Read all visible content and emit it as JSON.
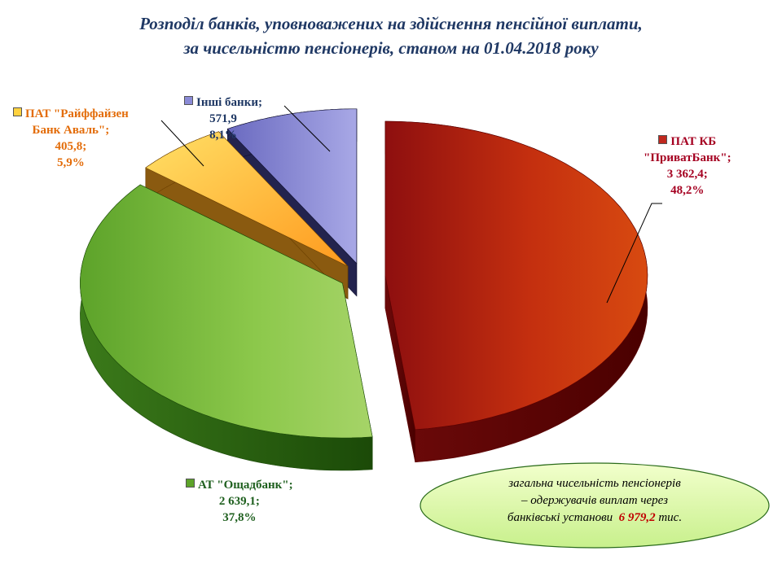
{
  "title_line1": "Розподіл банків, уповноважених на здійснення пенсійної виплати,",
  "title_line2": "за чисельністю пенсіонерів, станом на 01.04.2018 року",
  "chart_data": {
    "type": "pie",
    "title": "Розподіл банків, уповноважених на здійснення пенсійної виплати, за чисельністю пенсіонерів, станом на 01.04.2018 року",
    "slices": [
      {
        "name_line1": "ПАТ КБ",
        "name_line2": "\"ПриватБанк\";",
        "value": 3362.4,
        "value_label": "3 362,4;",
        "percent": 48.2,
        "percent_label": "48,2%",
        "color": "#c0281e"
      },
      {
        "name_line1": "АТ \"Ощадбанк\";",
        "name_line2": "",
        "value": 2639.1,
        "value_label": "2 639,1;",
        "percent": 37.8,
        "percent_label": "37,8%",
        "color": "#7cc03a"
      },
      {
        "name_line1": "ПАТ \"Райффайзен",
        "name_line2": "Банк Аваль\";",
        "value": 405.8,
        "value_label": "405,8;",
        "percent": 5.9,
        "percent_label": "5,9%",
        "color": "#ffd23f"
      },
      {
        "name_line1": "Інші банки;",
        "name_line2": "",
        "value": 571.9,
        "value_label": "571,9",
        "percent": 8.1,
        "percent_label": "8,1%",
        "color": "#8a8ad6"
      }
    ]
  },
  "label_colors": {
    "privat": "#a50021",
    "oschad": "#1e5f1e",
    "raiff": "#e36c09",
    "other": "#1f3864"
  },
  "note": {
    "line1": "загальна чисельність пенсіонерів",
    "line2": "– одержувачів виплат через",
    "line3_prefix": "банківські установи",
    "total": "6 979,2",
    "unit": "тис."
  }
}
